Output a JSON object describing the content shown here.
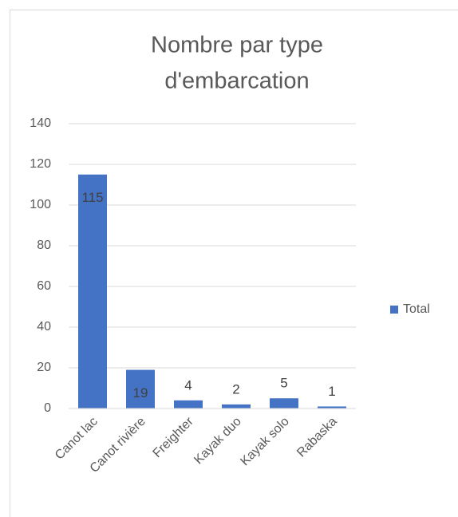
{
  "chart_data": {
    "type": "bar",
    "title": [
      "Nombre par type",
      "d'embarcation"
    ],
    "categories": [
      "Canot lac",
      "Canot rivière",
      "Freighter",
      "Kayak duo",
      "Kayak solo",
      "Rabaska"
    ],
    "series": [
      {
        "name": "Total",
        "color": "#4472c4",
        "values": [
          115,
          19,
          4,
          2,
          5,
          1
        ]
      }
    ],
    "ylim": [
      0,
      140
    ],
    "yticks": [
      0,
      20,
      40,
      60,
      80,
      100,
      120,
      140
    ],
    "grid": true,
    "legend": "right",
    "data_labels": true
  }
}
